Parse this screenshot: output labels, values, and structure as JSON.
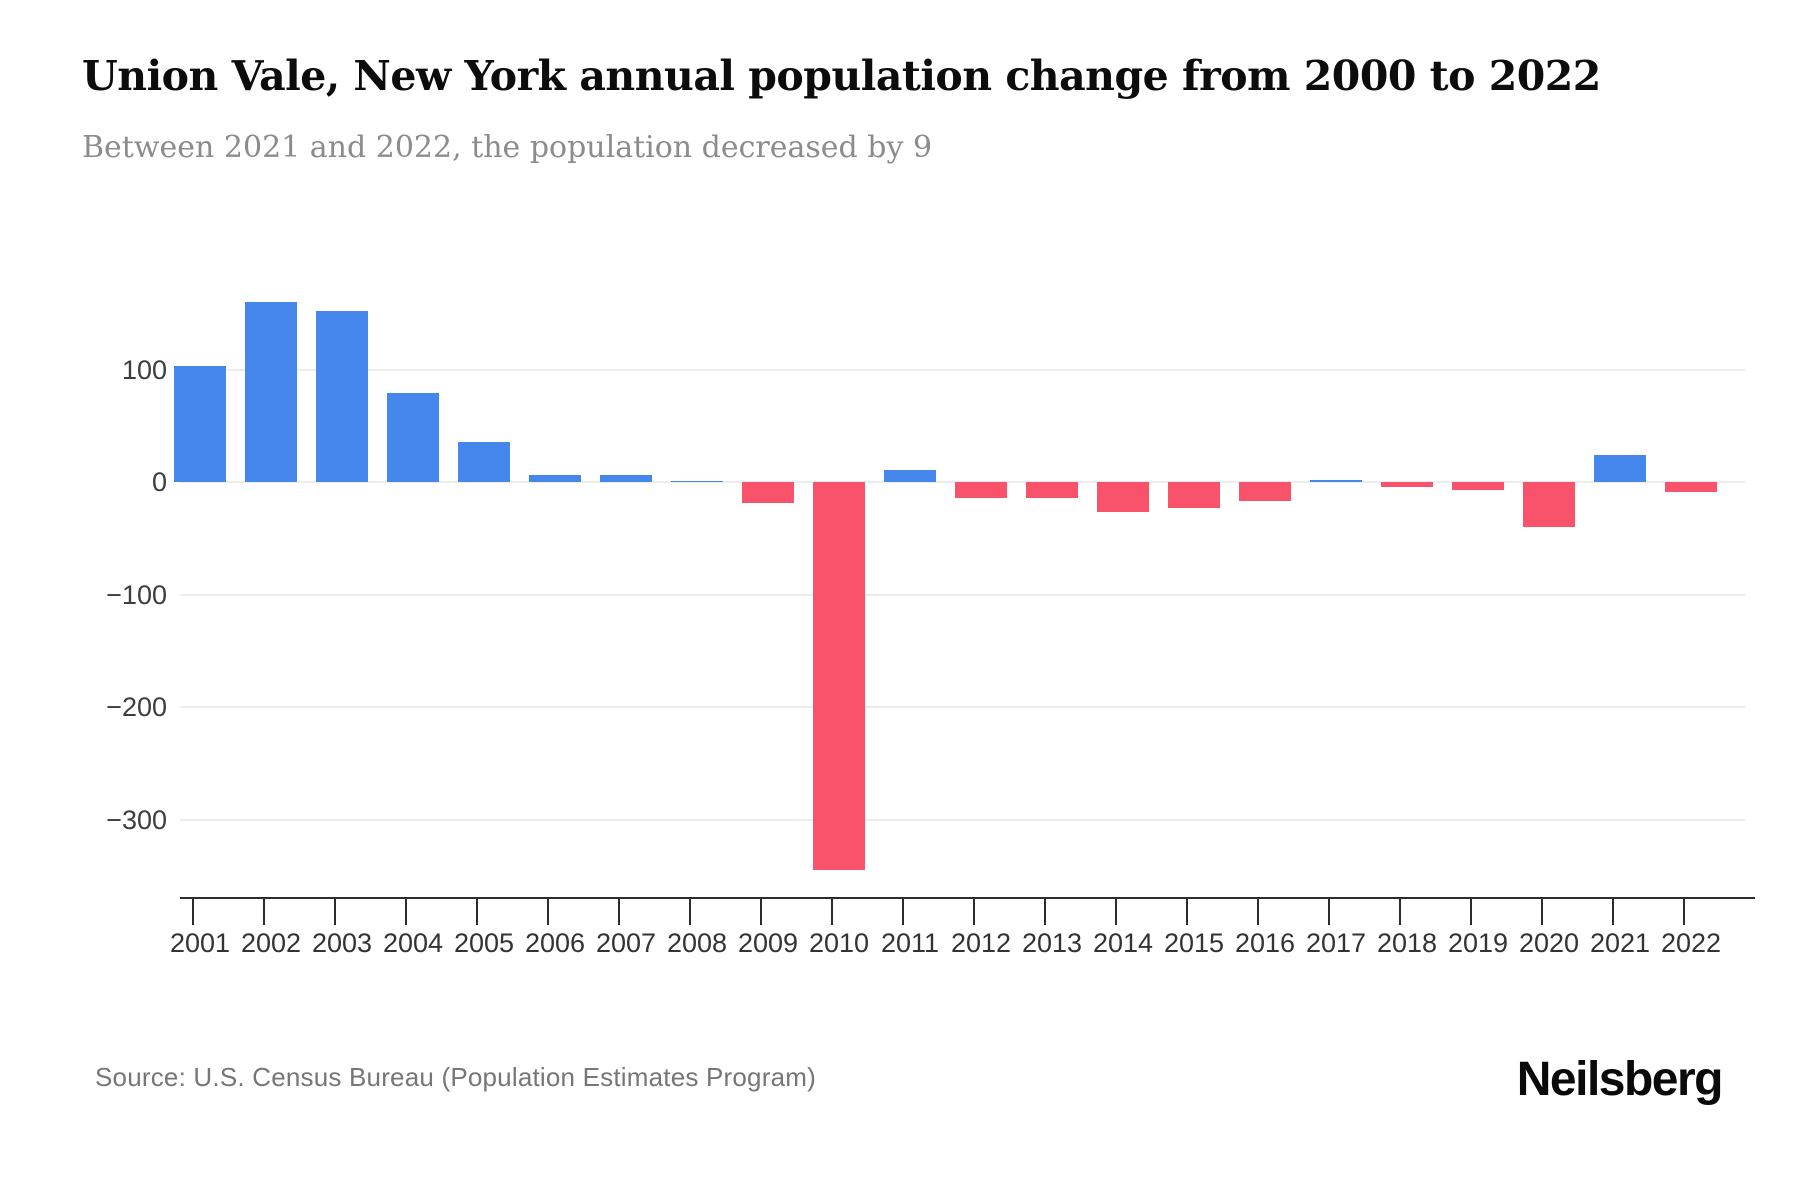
{
  "page": {
    "source": "Source: U.S. Census Bureau (Population Estimates Program)",
    "logo": "Neilsberg"
  },
  "chart_data": {
    "type": "bar",
    "title": "Union Vale, New York annual population change from 2000 to 2022",
    "subtitle": "Between 2021 and 2022, the population decreased by 9",
    "categories": [
      "2001",
      "2002",
      "2003",
      "2004",
      "2005",
      "2006",
      "2007",
      "2008",
      "2009",
      "2010",
      "2011",
      "2012",
      "2013",
      "2014",
      "2015",
      "2016",
      "2017",
      "2018",
      "2019",
      "2020",
      "2021",
      "2022"
    ],
    "values": [
      103,
      160,
      152,
      79,
      36,
      6,
      6,
      1,
      -19,
      -345,
      11,
      -14,
      -14,
      -27,
      -23,
      -17,
      2,
      -4,
      -7,
      -40,
      24,
      -9
    ],
    "yticks": [
      {
        "value": 100,
        "label": "100"
      },
      {
        "value": 0,
        "label": "0"
      },
      {
        "value": -100,
        "label": "−100"
      },
      {
        "value": -200,
        "label": "−200"
      },
      {
        "value": -300,
        "label": "−300"
      }
    ],
    "ylim": [
      -370,
      210
    ],
    "grid": true,
    "legend": "none",
    "xlabel": "",
    "ylabel": "",
    "colors": {
      "positive": "#4687ee",
      "negative": "#f8536b"
    }
  }
}
